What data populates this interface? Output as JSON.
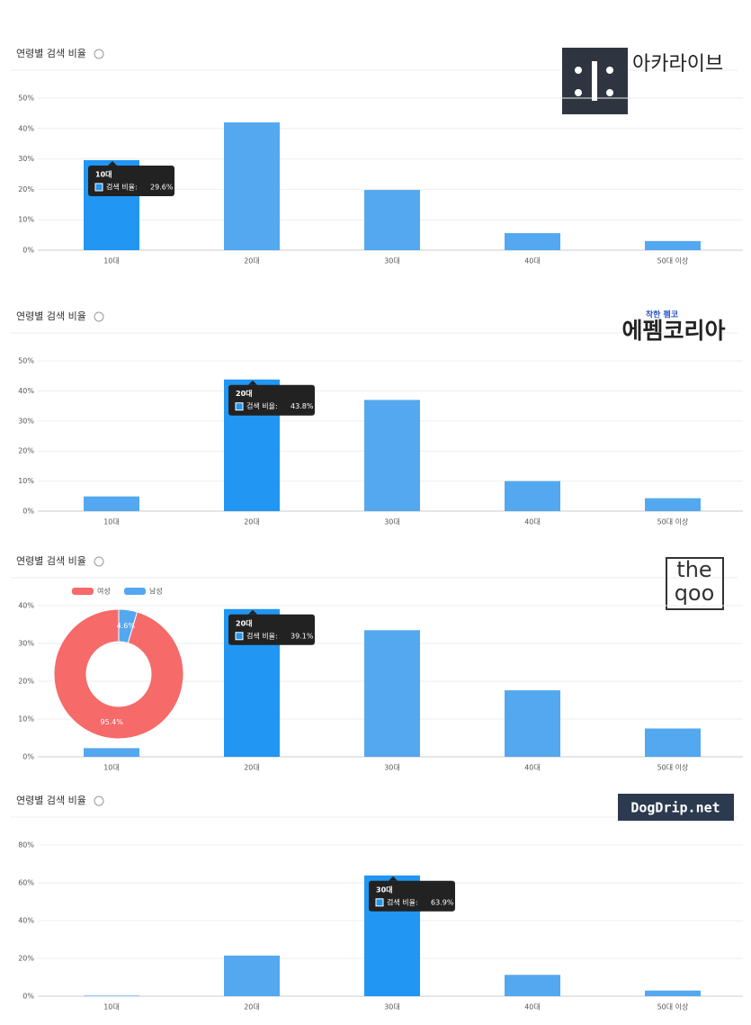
{
  "chart_data": [
    {
      "type": "bar",
      "title": "연령별 검색 비율",
      "logo": [
        "아카라이브"
      ],
      "categories": [
        "10대",
        "20대",
        "30대",
        "40대",
        "50대 이상"
      ],
      "series": [
        {
          "name": "검색 비율",
          "color": "#53a8ef",
          "values": [
            29.6,
            42,
            19.8,
            5.6,
            3.0
          ]
        }
      ],
      "highlight_color": "#2196f3",
      "ylim": [
        0,
        50
      ],
      "yticks": [
        {
          "value": 0,
          "label": "0%"
        },
        {
          "value": 10,
          "label": "10%"
        },
        {
          "value": 20,
          "label": "20%"
        },
        {
          "value": 30,
          "label": "30%"
        },
        {
          "value": 40,
          "label": "40%"
        },
        {
          "value": 50,
          "label": "50%"
        }
      ],
      "grid": true,
      "tooltip": {
        "index": 0,
        "label": "검색 비율:",
        "value_label": "29.6%"
      }
    },
    {
      "type": "bar",
      "title": "연령별 검색 비율",
      "logo": [
        "착한 펨코",
        "에펨코리아"
      ],
      "categories": [
        "10대",
        "20대",
        "30대",
        "40대",
        "50대 이상"
      ],
      "series": [
        {
          "name": "검색 비율",
          "color": "#53a8ef",
          "values": [
            4.9,
            43.8,
            37,
            10,
            4.3
          ]
        }
      ],
      "highlight_color": "#2196f3",
      "ylim": [
        0,
        50
      ],
      "yticks": [
        {
          "value": 0,
          "label": "0%"
        },
        {
          "value": 10,
          "label": "10%"
        },
        {
          "value": 20,
          "label": "20%"
        },
        {
          "value": 30,
          "label": "30%"
        },
        {
          "value": 40,
          "label": "40%"
        },
        {
          "value": 50,
          "label": "50%"
        }
      ],
      "grid": true,
      "tooltip": {
        "index": 1,
        "label": "검색 비율:",
        "value_label": "43.8%"
      }
    },
    {
      "type": "bar",
      "title": "연령별 검색 비율",
      "logo": [
        "the",
        "qoo"
      ],
      "categories": [
        "10대",
        "20대",
        "30대",
        "40대",
        "50대 이상"
      ],
      "series": [
        {
          "name": "검색 비율",
          "color": "#53a8ef",
          "values": [
            2.3,
            39.1,
            33.5,
            17.6,
            7.5
          ]
        }
      ],
      "highlight_color": "#2196f3",
      "ylim": [
        0,
        40
      ],
      "yticks": [
        {
          "value": 0,
          "label": "0%"
        },
        {
          "value": 10,
          "label": "10%"
        },
        {
          "value": 20,
          "label": "20%"
        },
        {
          "value": 30,
          "label": "30%"
        },
        {
          "value": 40,
          "label": "40%"
        }
      ],
      "grid": true,
      "tooltip": {
        "index": 1,
        "label": "검색 비율:",
        "value_label": "39.1%"
      },
      "inset": {
        "type": "pie",
        "categories": [
          "여성",
          "남성"
        ],
        "values": [
          95.4,
          4.6
        ],
        "value_labels": [
          "95.4%",
          "4.6%"
        ],
        "colors": [
          "#f66a6a",
          "#53a8ef"
        ]
      }
    },
    {
      "type": "bar",
      "title": "연령별 검색 비율",
      "logo": [
        "DogDrip.net"
      ],
      "categories": [
        "10대",
        "20대",
        "30대",
        "40대",
        "50대 이상"
      ],
      "series": [
        {
          "name": "검색 비율",
          "color": "#53a8ef",
          "values": [
            0.3,
            21.5,
            63.9,
            11.3,
            3.0
          ]
        }
      ],
      "highlight_color": "#2196f3",
      "ylim": [
        0,
        80
      ],
      "yticks": [
        {
          "value": 0,
          "label": "0%"
        },
        {
          "value": 20,
          "label": "20%"
        },
        {
          "value": 40,
          "label": "40%"
        },
        {
          "value": 60,
          "label": "60%"
        },
        {
          "value": 80,
          "label": "80%"
        }
      ],
      "grid": true,
      "tooltip": {
        "index": 2,
        "label": "검색 비율:",
        "value_label": "63.9%"
      }
    }
  ]
}
